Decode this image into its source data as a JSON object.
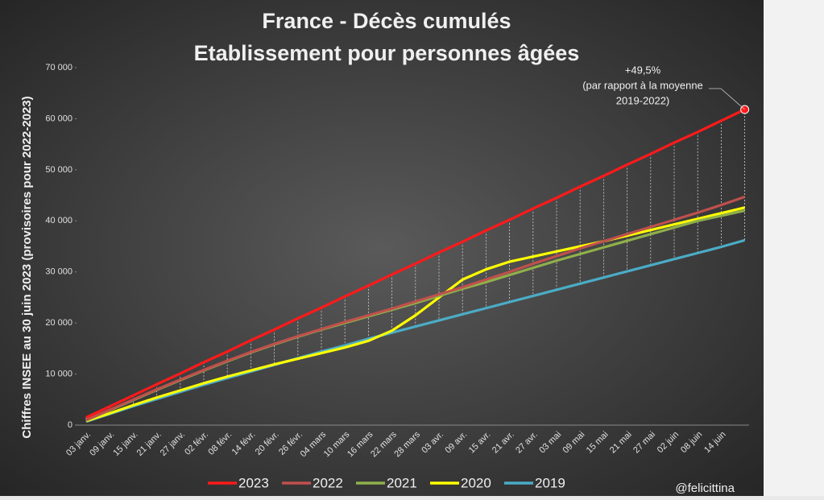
{
  "chart_data": {
    "type": "line",
    "title": "France - Décès cumulés",
    "subtitle": "Etablissement pour personnes âgées",
    "y_label": "Chiffres INSEE au 30 juin 2023 (provisoires pour 2022-2023)",
    "annotation": [
      "+49,5%",
      "(par rapport à la moyenne",
      "2019-2022)"
    ],
    "credit": "@felicittina",
    "categories": [
      "03 janv.",
      "09 janv.",
      "15 janv.",
      "21 janv.",
      "27 janv.",
      "02 févr.",
      "08 févr.",
      "14 févr.",
      "20 févr.",
      "26 févr.",
      "04 mars",
      "10 mars",
      "16 mars",
      "22 mars",
      "28 mars",
      "03 avr.",
      "09 avr.",
      "15 avr.",
      "21 avr.",
      "27 avr.",
      "03 mai",
      "09 mai",
      "15 mai",
      "21 mai",
      "27 mai",
      "02 juin",
      "08 juin",
      "14 juin",
      null
    ],
    "series": [
      {
        "name": "2023",
        "color": "#ff1a1a",
        "values": [
          1500,
          3650,
          5800,
          8000,
          10100,
          12300,
          14400,
          16600,
          18700,
          20900,
          23000,
          25200,
          27300,
          29500,
          31600,
          33800,
          35900,
          38100,
          40200,
          42400,
          44500,
          46700,
          48800,
          51000,
          53100,
          55300,
          57400,
          59600,
          61800
        ]
      },
      {
        "name": "2022",
        "color": "#c0504d",
        "values": [
          1000,
          3000,
          5000,
          7000,
          8900,
          10800,
          12600,
          14300,
          15900,
          17400,
          18800,
          20200,
          21500,
          22800,
          24200,
          25600,
          27000,
          28500,
          30000,
          31600,
          33100,
          34600,
          36000,
          37400,
          38800,
          40200,
          41600,
          43100,
          44700
        ]
      },
      {
        "name": "2021",
        "color": "#8fb04a",
        "values": [
          900,
          2900,
          4900,
          6900,
          8800,
          10700,
          12500,
          14200,
          15800,
          17300,
          18700,
          20000,
          21300,
          22600,
          23900,
          25300,
          26700,
          28000,
          29400,
          30800,
          32200,
          33500,
          34800,
          36100,
          37400,
          38700,
          40000,
          41000,
          42000
        ]
      },
      {
        "name": "2020",
        "color": "#ffff00",
        "values": [
          800,
          2300,
          3900,
          5400,
          6800,
          8200,
          9500,
          10700,
          11900,
          13000,
          14100,
          15200,
          16500,
          18500,
          21500,
          25000,
          28500,
          30500,
          32000,
          33000,
          34000,
          35000,
          36000,
          37100,
          38200,
          39300,
          40400,
          41500,
          42600
        ]
      },
      {
        "name": "2019",
        "color": "#4bacc6",
        "values": [
          700,
          2200,
          3700,
          5100,
          6500,
          7900,
          9200,
          10500,
          11800,
          13100,
          14400,
          15600,
          16900,
          18100,
          19300,
          20500,
          21700,
          22900,
          24100,
          25300,
          26500,
          27700,
          28900,
          30100,
          31300,
          32500,
          33700,
          34900,
          36200
        ]
      }
    ],
    "ylim": [
      0,
      70000
    ],
    "yticks": [
      0,
      {
        "value": 10000,
        "label": "10 000"
      },
      {
        "value": 20000,
        "label": "20 000"
      },
      {
        "value": 30000,
        "label": "30 000"
      },
      {
        "value": 40000,
        "label": "40 000"
      },
      {
        "value": 50000,
        "label": "50 000"
      },
      {
        "value": 60000,
        "label": "60 000"
      },
      {
        "value": 70000,
        "label": "70 000"
      }
    ]
  }
}
